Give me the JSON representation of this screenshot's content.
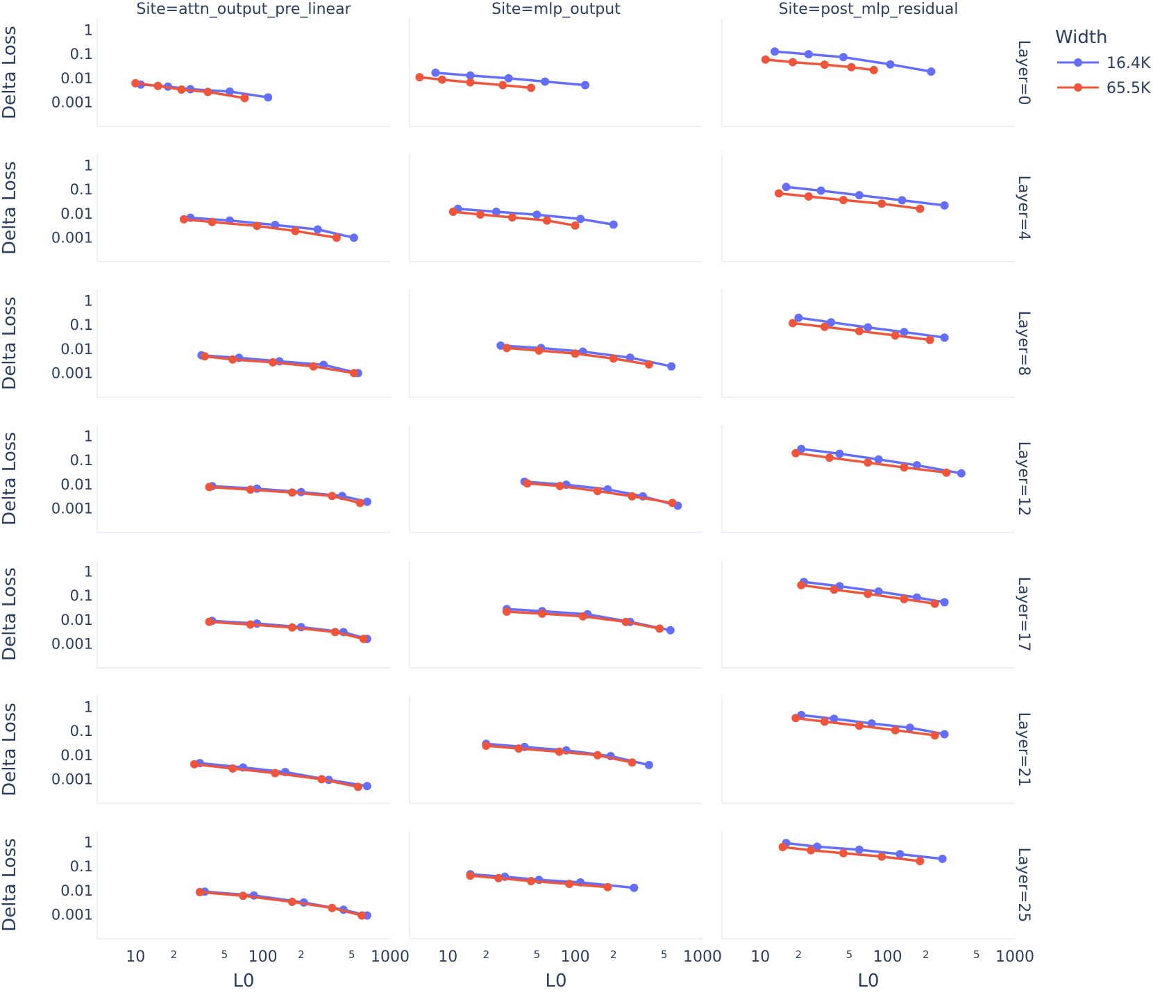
{
  "chart_data": {
    "type": "line",
    "x_scale": "log",
    "y_scale": "log",
    "xlim": [
      5,
      1000
    ],
    "ylim": [
      0.0001,
      3
    ],
    "x_ticks_major": [
      "10",
      "100",
      "1000"
    ],
    "x_ticks_minor": [
      "2",
      "5"
    ],
    "y_ticks": [
      "1",
      "0.1",
      "0.01",
      "0.001"
    ],
    "xlabel": "L0",
    "ylabel": "Delta Loss",
    "columns": [
      "Site=attn_output_pre_linear",
      "Site=mlp_output",
      "Site=post_mlp_residual"
    ],
    "rows": [
      "Layer=0",
      "Layer=4",
      "Layer=8",
      "Layer=12",
      "Layer=17",
      "Layer=21",
      "Layer=25"
    ],
    "grid": false,
    "legend": {
      "title": "Width",
      "placement": "top-right-outside",
      "entries": [
        {
          "name": "16.4K",
          "color": "#636efa"
        },
        {
          "name": "65.5K",
          "color": "#ef553b"
        }
      ]
    },
    "panels": [
      {
        "row": 0,
        "col": 0,
        "series": [
          {
            "name": "16.4K",
            "x": [
              11,
              18,
              27,
              55,
              110
            ],
            "y": [
              0.0055,
              0.0045,
              0.0035,
              0.0028,
              0.0016
            ]
          },
          {
            "name": "65.5K",
            "x": [
              10,
              15,
              23,
              37,
              72
            ],
            "y": [
              0.0062,
              0.0048,
              0.0034,
              0.0027,
              0.0015
            ]
          }
        ]
      },
      {
        "row": 0,
        "col": 1,
        "series": [
          {
            "name": "16.4K",
            "x": [
              8,
              15,
              30,
              58,
              120
            ],
            "y": [
              0.017,
              0.013,
              0.01,
              0.0073,
              0.0052
            ]
          },
          {
            "name": "65.5K",
            "x": [
              6,
              9,
              15,
              27,
              45
            ],
            "y": [
              0.011,
              0.0088,
              0.0068,
              0.0052,
              0.004
            ]
          }
        ]
      },
      {
        "row": 0,
        "col": 2,
        "series": [
          {
            "name": "16.4K",
            "x": [
              13,
              24,
              45,
              105,
              220
            ],
            "y": [
              0.13,
              0.1,
              0.076,
              0.038,
              0.019
            ]
          },
          {
            "name": "65.5K",
            "x": [
              11,
              18,
              32,
              52,
              78
            ],
            "y": [
              0.06,
              0.047,
              0.037,
              0.029,
              0.022
            ]
          }
        ]
      },
      {
        "row": 1,
        "col": 0,
        "series": [
          {
            "name": "16.4K",
            "x": [
              27,
              55,
              125,
              270,
              520
            ],
            "y": [
              0.0068,
              0.0052,
              0.0034,
              0.0022,
              0.001
            ]
          },
          {
            "name": "65.5K",
            "x": [
              24,
              40,
              90,
              180,
              380
            ],
            "y": [
              0.0058,
              0.0045,
              0.0031,
              0.0019,
              0.001
            ]
          }
        ]
      },
      {
        "row": 1,
        "col": 1,
        "series": [
          {
            "name": "16.4K",
            "x": [
              12,
              24,
              50,
              110,
              200
            ],
            "y": [
              0.016,
              0.012,
              0.009,
              0.006,
              0.0035
            ]
          },
          {
            "name": "65.5K",
            "x": [
              11,
              18,
              32,
              60,
              100
            ],
            "y": [
              0.012,
              0.0092,
              0.007,
              0.0052,
              0.0032
            ]
          }
        ]
      },
      {
        "row": 1,
        "col": 2,
        "series": [
          {
            "name": "16.4K",
            "x": [
              16,
              30,
              60,
              130,
              280
            ],
            "y": [
              0.13,
              0.091,
              0.059,
              0.036,
              0.022
            ]
          },
          {
            "name": "65.5K",
            "x": [
              14,
              24,
              45,
              90,
              180
            ],
            "y": [
              0.07,
              0.052,
              0.037,
              0.026,
              0.016
            ]
          }
        ]
      },
      {
        "row": 2,
        "col": 0,
        "series": [
          {
            "name": "16.4K",
            "x": [
              33,
              65,
              135,
              300,
              560
            ],
            "y": [
              0.0055,
              0.0043,
              0.0031,
              0.0022,
              0.001
            ]
          },
          {
            "name": "65.5K",
            "x": [
              35,
              58,
              120,
              250,
              520
            ],
            "y": [
              0.005,
              0.0037,
              0.0028,
              0.0019,
              0.001
            ]
          }
        ]
      },
      {
        "row": 2,
        "col": 1,
        "series": [
          {
            "name": "16.4K",
            "x": [
              26,
              54,
              115,
              270,
              570
            ],
            "y": [
              0.014,
              0.011,
              0.0078,
              0.0044,
              0.0019
            ]
          },
          {
            "name": "65.5K",
            "x": [
              29,
              52,
              100,
              200,
              380
            ],
            "y": [
              0.011,
              0.0087,
              0.0065,
              0.004,
              0.0023
            ]
          }
        ]
      },
      {
        "row": 2,
        "col": 2,
        "series": [
          {
            "name": "16.4K",
            "x": [
              20,
              36,
              70,
              135,
              280
            ],
            "y": [
              0.2,
              0.13,
              0.08,
              0.051,
              0.03
            ]
          },
          {
            "name": "65.5K",
            "x": [
              18,
              32,
              60,
              115,
              215
            ],
            "y": [
              0.12,
              0.084,
              0.056,
              0.037,
              0.024
            ]
          }
        ]
      },
      {
        "row": 3,
        "col": 0,
        "series": [
          {
            "name": "16.4K",
            "x": [
              40,
              90,
              200,
              420,
              660
            ],
            "y": [
              0.0085,
              0.0067,
              0.0048,
              0.0033,
              0.0019
            ]
          },
          {
            "name": "65.5K",
            "x": [
              38,
              80,
              170,
              350,
              580
            ],
            "y": [
              0.0078,
              0.0061,
              0.0046,
              0.0033,
              0.0017
            ]
          }
        ]
      },
      {
        "row": 3,
        "col": 1,
        "series": [
          {
            "name": "16.4K",
            "x": [
              40,
              85,
              180,
              340,
              640
            ],
            "y": [
              0.013,
              0.0098,
              0.0062,
              0.0032,
              0.0013
            ]
          },
          {
            "name": "65.5K",
            "x": [
              42,
              76,
              150,
              280,
              580
            ],
            "y": [
              0.011,
              0.0086,
              0.0053,
              0.0032,
              0.0017
            ]
          }
        ]
      },
      {
        "row": 3,
        "col": 2,
        "series": [
          {
            "name": "16.4K",
            "x": [
              21,
              42,
              85,
              170,
              380
            ],
            "y": [
              0.3,
              0.19,
              0.11,
              0.063,
              0.029
            ]
          },
          {
            "name": "65.5K",
            "x": [
              19,
              35,
              70,
              135,
              290
            ],
            "y": [
              0.2,
              0.13,
              0.081,
              0.051,
              0.031
            ]
          }
        ]
      },
      {
        "row": 4,
        "col": 0,
        "series": [
          {
            "name": "16.4K",
            "x": [
              40,
              90,
              200,
              430,
              660
            ],
            "y": [
              0.009,
              0.007,
              0.005,
              0.0031,
              0.0016
            ]
          },
          {
            "name": "65.5K",
            "x": [
              38,
              80,
              170,
              370,
              620
            ],
            "y": [
              0.0083,
              0.0064,
              0.0048,
              0.0031,
              0.0016
            ]
          }
        ]
      },
      {
        "row": 4,
        "col": 1,
        "series": [
          {
            "name": "16.4K",
            "x": [
              29,
              55,
              125,
              270,
              560
            ],
            "y": [
              0.028,
              0.023,
              0.017,
              0.0082,
              0.0037
            ]
          },
          {
            "name": "65.5K",
            "x": [
              29,
              55,
              115,
              250,
              460
            ],
            "y": [
              0.022,
              0.018,
              0.014,
              0.0082,
              0.0043
            ]
          }
        ]
      },
      {
        "row": 4,
        "col": 2,
        "series": [
          {
            "name": "16.4K",
            "x": [
              22,
              42,
              85,
              170,
              280
            ],
            "y": [
              0.38,
              0.25,
              0.15,
              0.085,
              0.054
            ]
          },
          {
            "name": "65.5K",
            "x": [
              21,
              38,
              70,
              135,
              235
            ],
            "y": [
              0.28,
              0.18,
              0.12,
              0.073,
              0.047
            ]
          }
        ]
      },
      {
        "row": 5,
        "col": 0,
        "series": [
          {
            "name": "16.4K",
            "x": [
              32,
              70,
              150,
              330,
              660
            ],
            "y": [
              0.0047,
              0.0031,
              0.002,
              0.00095,
              0.00052
            ]
          },
          {
            "name": "65.5K",
            "x": [
              29,
              58,
              125,
              290,
              560
            ],
            "y": [
              0.0042,
              0.0028,
              0.0018,
              0.001,
              0.00048
            ]
          }
        ]
      },
      {
        "row": 5,
        "col": 1,
        "series": [
          {
            "name": "16.4K",
            "x": [
              20,
              40,
              85,
              190,
              380
            ],
            "y": [
              0.03,
              0.022,
              0.016,
              0.0092,
              0.0039
            ]
          },
          {
            "name": "65.5K",
            "x": [
              20,
              36,
              75,
              150,
              280
            ],
            "y": [
              0.025,
              0.019,
              0.014,
              0.01,
              0.005
            ]
          }
        ]
      },
      {
        "row": 5,
        "col": 2,
        "series": [
          {
            "name": "16.4K",
            "x": [
              21,
              38,
              75,
              150,
              280
            ],
            "y": [
              0.47,
              0.33,
              0.21,
              0.14,
              0.075
            ]
          },
          {
            "name": "65.5K",
            "x": [
              19,
              32,
              60,
              115,
              235
            ],
            "y": [
              0.35,
              0.25,
              0.17,
              0.11,
              0.067
            ]
          }
        ]
      },
      {
        "row": 6,
        "col": 0,
        "series": [
          {
            "name": "16.4K",
            "x": [
              35,
              85,
              210,
              430,
              660
            ],
            "y": [
              0.009,
              0.0063,
              0.0032,
              0.0016,
              0.00092
            ]
          },
          {
            "name": "65.5K",
            "x": [
              32,
              70,
              170,
              350,
              600
            ],
            "y": [
              0.0087,
              0.0061,
              0.0034,
              0.0019,
              0.00092
            ]
          }
        ]
      },
      {
        "row": 6,
        "col": 1,
        "series": [
          {
            "name": "16.4K",
            "x": [
              15,
              28,
              52,
              110,
              290
            ],
            "y": [
              0.048,
              0.038,
              0.028,
              0.022,
              0.013
            ]
          },
          {
            "name": "65.5K",
            "x": [
              15,
              25,
              45,
              90,
              180
            ],
            "y": [
              0.042,
              0.033,
              0.025,
              0.019,
              0.014
            ]
          }
        ]
      },
      {
        "row": 6,
        "col": 2,
        "series": [
          {
            "name": "16.4K",
            "x": [
              16,
              28,
              60,
              125,
              270
            ],
            "y": [
              0.95,
              0.67,
              0.5,
              0.33,
              0.21
            ]
          },
          {
            "name": "65.5K",
            "x": [
              15,
              25,
              45,
              90,
              180
            ],
            "y": [
              0.65,
              0.48,
              0.36,
              0.26,
              0.17
            ]
          }
        ]
      }
    ]
  }
}
